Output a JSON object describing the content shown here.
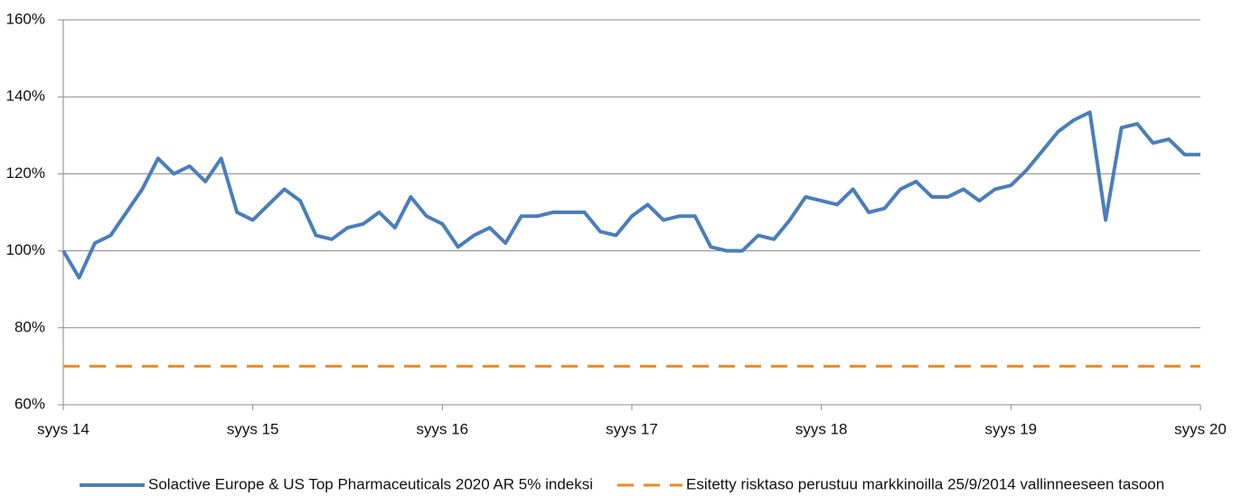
{
  "chart_data": {
    "type": "line",
    "categories": [
      "syys 14",
      null,
      null,
      null,
      null,
      null,
      null,
      null,
      null,
      null,
      null,
      null,
      "syys 15",
      null,
      null,
      null,
      null,
      null,
      null,
      null,
      null,
      null,
      null,
      null,
      "syys 16",
      null,
      null,
      null,
      null,
      null,
      null,
      null,
      null,
      null,
      null,
      null,
      "syys 17",
      null,
      null,
      null,
      null,
      null,
      null,
      null,
      null,
      null,
      null,
      null,
      "syys 18",
      null,
      null,
      null,
      null,
      null,
      null,
      null,
      null,
      null,
      null,
      null,
      "syys 19",
      null,
      null,
      null,
      null,
      null,
      null,
      null,
      null,
      null,
      null,
      null,
      "syys 20"
    ],
    "series": [
      {
        "name": "Solactive Europe & US Top Pharmaceuticals 2020 AR 5% indeksi",
        "color": "#4a7ebb",
        "dash": false,
        "values": [
          100,
          93,
          102,
          104,
          110,
          116,
          124,
          120,
          122,
          118,
          124,
          110,
          108,
          112,
          116,
          113,
          104,
          103,
          106,
          107,
          110,
          106,
          114,
          109,
          107,
          101,
          104,
          106,
          102,
          109,
          109,
          110,
          110,
          110,
          105,
          104,
          109,
          112,
          108,
          109,
          109,
          101,
          100,
          100,
          104,
          103,
          108,
          114,
          113,
          112,
          116,
          110,
          111,
          116,
          118,
          114,
          114,
          116,
          113,
          116,
          117,
          121,
          126,
          131,
          134,
          136,
          108,
          132,
          133,
          128,
          129,
          125,
          125
        ]
      },
      {
        "name": "Esitetty risktaso perustuu markkinoilla 25/9/2014 vallinneeseen tasoon",
        "color": "#f08a24",
        "dash": true,
        "values": [
          70,
          70,
          70,
          70,
          70,
          70,
          70,
          70,
          70,
          70,
          70,
          70,
          70,
          70,
          70,
          70,
          70,
          70,
          70,
          70,
          70,
          70,
          70,
          70,
          70,
          70,
          70,
          70,
          70,
          70,
          70,
          70,
          70,
          70,
          70,
          70,
          70,
          70,
          70,
          70,
          70,
          70,
          70,
          70,
          70,
          70,
          70,
          70,
          70,
          70,
          70,
          70,
          70,
          70,
          70,
          70,
          70,
          70,
          70,
          70,
          70,
          70,
          70,
          70,
          70,
          70,
          70,
          70,
          70,
          70,
          70,
          70,
          70
        ]
      }
    ],
    "ylim": [
      60,
      160
    ],
    "yticks": [
      {
        "value": 60,
        "label": "60%"
      },
      {
        "value": 80,
        "label": "80%"
      },
      {
        "value": 100,
        "label": "100%"
      },
      {
        "value": 120,
        "label": "120%"
      },
      {
        "value": 140,
        "label": "140%"
      },
      {
        "value": 160,
        "label": "160%"
      }
    ],
    "grid": true,
    "legend": "bottom"
  }
}
